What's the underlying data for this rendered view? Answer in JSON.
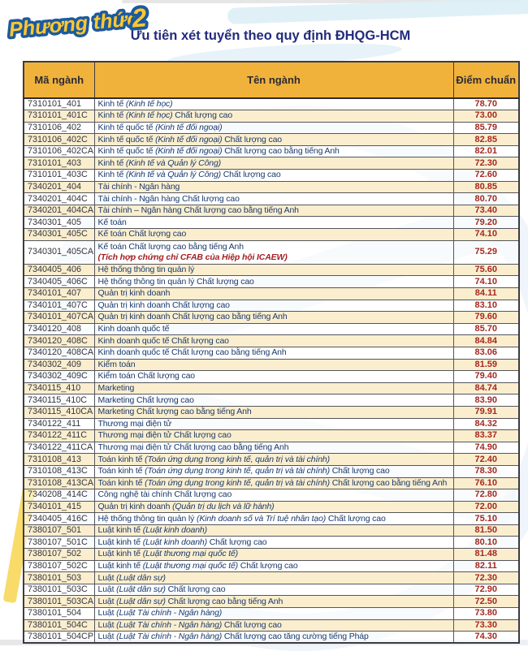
{
  "page": {
    "logo_main": "Phương thức",
    "logo_number": "2",
    "subtitle": "Ưu tiên xét tuyển theo quy định ĐHQG-HCM"
  },
  "colors": {
    "header_orange": "#f1b23c",
    "row_cream": "#faedcb",
    "name_navy": "#1c3a6b",
    "score_red": "#a5281f",
    "subtitle_navy": "#232b7d",
    "logo_gold": "#ffc832",
    "logo_outline_blue": "#1d5a9e"
  },
  "table": {
    "headers": [
      "Mã ngành",
      "Tên ngành",
      "Điểm chuẩn"
    ],
    "rows": [
      {
        "code": "7310101_401",
        "pre": "Kinh tế ",
        "it": "(Kinh tế học)",
        "post": "",
        "score": "78.70"
      },
      {
        "code": "7310101_401C",
        "pre": "Kinh tế ",
        "it": "(Kinh tế học)",
        "post": " Chất lượng cao",
        "score": "73.00"
      },
      {
        "code": "7310106_402",
        "pre": "Kinh tế quốc tế ",
        "it": "(Kinh tế đối ngoại)",
        "post": "",
        "score": "85.79"
      },
      {
        "code": "7310106_402C",
        "pre": "Kinh tế quốc tế ",
        "it": "(Kinh tế đối ngoại)",
        "post": " Chất lượng cao",
        "score": "82.85"
      },
      {
        "code": "7310106_402CA",
        "pre": "Kinh tế quốc tế ",
        "it": "(Kinh tế đối ngoại)",
        "post": " Chất lượng cao bằng tiếng Anh",
        "score": "82.01"
      },
      {
        "code": "7310101_403",
        "pre": "Kinh tế ",
        "it": "(Kinh tế và Quản lý Công)",
        "post": "",
        "score": "72.30"
      },
      {
        "code": "7310101_403C",
        "pre": "Kinh tế ",
        "it": "(Kinh tế và Quản lý Công)",
        "post": " Chất lượng cao",
        "score": "72.60"
      },
      {
        "code": "7340201_404",
        "pre": "Tài chính - Ngân hàng",
        "it": "",
        "post": "",
        "score": "80.85"
      },
      {
        "code": "7340201_404C",
        "pre": "Tài chính - Ngân hàng Chất lượng cao",
        "it": "",
        "post": "",
        "score": "80.70"
      },
      {
        "code": "7340201_404CA",
        "pre": "Tài chính – Ngân hàng Chất lượng cao bằng tiếng Anh",
        "it": "",
        "post": "",
        "score": "73.40"
      },
      {
        "code": "7340301_405",
        "pre": "Kế toán",
        "it": "",
        "post": "",
        "score": "79.20"
      },
      {
        "code": "7340301_405C",
        "pre": "Kế toán Chất lượng cao",
        "it": "",
        "post": "",
        "score": "74.10"
      },
      {
        "code": "7340301_405CA",
        "pre": "Kế toán Chất lượng cao bằng tiếng Anh",
        "it": "",
        "post": "",
        "note": "(Tích hợp chứng chỉ CFAB của Hiệp hội ICAEW)",
        "score": "75.29"
      },
      {
        "code": "7340405_406",
        "pre": "Hệ thống thông tin quản lý",
        "it": "",
        "post": "",
        "score": "75.60"
      },
      {
        "code": "7340405_406C",
        "pre": "Hệ thống thông tin quản lý Chất lượng cao",
        "it": "",
        "post": "",
        "score": "74.10"
      },
      {
        "code": "7340101_407",
        "pre": "Quản trị kinh doanh",
        "it": "",
        "post": "",
        "score": "84.11"
      },
      {
        "code": "7340101_407C",
        "pre": "Quản trị kinh doanh Chất lượng cao",
        "it": "",
        "post": "",
        "score": "83.10"
      },
      {
        "code": "7340101_407CA",
        "pre": "Quản trị kinh doanh Chất lượng cao bằng tiếng Anh",
        "it": "",
        "post": "",
        "score": "79.60"
      },
      {
        "code": "7340120_408",
        "pre": "Kinh doanh quốc tế",
        "it": "",
        "post": "",
        "score": "85.70"
      },
      {
        "code": "7340120_408C",
        "pre": "Kinh doanh quốc tế Chất lượng cao",
        "it": "",
        "post": "",
        "score": "84.84"
      },
      {
        "code": "7340120_408CA",
        "pre": "Kinh doanh quốc tế Chất lượng cao bằng tiếng Anh",
        "it": "",
        "post": "",
        "score": "83.06"
      },
      {
        "code": "7340302_409",
        "pre": "Kiểm toán",
        "it": "",
        "post": "",
        "score": "81.59"
      },
      {
        "code": "7340302_409C",
        "pre": "Kiểm toán Chất lượng cao",
        "it": "",
        "post": "",
        "score": "79.40"
      },
      {
        "code": "7340115_410",
        "pre": "Marketing",
        "it": "",
        "post": "",
        "score": "84.74"
      },
      {
        "code": "7340115_410C",
        "pre": "Marketing Chất lượng cao",
        "it": "",
        "post": "",
        "score": "83.90"
      },
      {
        "code": "7340115_410CA",
        "pre": "Marketing Chất lượng cao bằng tiếng Anh",
        "it": "",
        "post": "",
        "score": "79.91"
      },
      {
        "code": "7340122_411",
        "pre": "Thương mại điện tử",
        "it": "",
        "post": "",
        "score": "84.32"
      },
      {
        "code": "7340122_411C",
        "pre": "Thương mại điện tử Chất lượng cao",
        "it": "",
        "post": "",
        "score": "83.37"
      },
      {
        "code": "7340122_411CA",
        "pre": "Thương mại điện tử Chất lượng cao bằng tiếng Anh",
        "it": "",
        "post": "",
        "score": "74.90"
      },
      {
        "code": "7310108_413",
        "pre": "Toán kinh tế ",
        "it": "(Toán ứng dụng trong kinh tế, quản trị và tài chính)",
        "post": "",
        "score": "72.40"
      },
      {
        "code": "7310108_413C",
        "pre": "Toán kinh tế ",
        "it": "(Toán ứng dụng trong kinh tế, quản trị và tài chính)",
        "post": " Chất lượng cao",
        "score": "78.30"
      },
      {
        "code": "7310108_413CA",
        "pre": "Toán kinh tế ",
        "it": "(Toán ứng dụng trong kinh tế, quản trị và tài chính)",
        "post": " Chất lượng cao bằng tiếng Anh",
        "score": "76.10"
      },
      {
        "code": "7340208_414C",
        "pre": "Công nghệ tài chính Chất lượng cao",
        "it": "",
        "post": "",
        "score": "72.80"
      },
      {
        "code": "7340101_415",
        "pre": "Quản trị kinh doanh ",
        "it": "(Quản trị du lịch và lữ hành)",
        "post": "",
        "score": "72.00"
      },
      {
        "code": "7340405_416C",
        "pre": "Hệ thống thông tin quản lý ",
        "it": "(Kinh doanh số và Trí tuệ nhân tạo)",
        "post": " Chất lượng cao",
        "score": "75.10"
      },
      {
        "code": "7380107_501",
        "pre": "Luật kinh tế ",
        "it": "(Luật kinh doanh)",
        "post": "",
        "score": "81.50"
      },
      {
        "code": "7380107_501C",
        "pre": "Luật kinh tế ",
        "it": "(Luật kinh doanh)",
        "post": " Chất lượng cao",
        "score": "80.10"
      },
      {
        "code": "7380107_502",
        "pre": "Luật kinh tế ",
        "it": "(Luật thương mại quốc tế)",
        "post": "",
        "score": "81.48"
      },
      {
        "code": "7380107_502C",
        "pre": "Luật kinh tế ",
        "it": "(Luật thương mại quốc tế)",
        "post": " Chất lượng cao",
        "score": "82.11"
      },
      {
        "code": "7380101_503",
        "pre": "Luật ",
        "it": "(Luật dân sự)",
        "post": "",
        "score": "72.30"
      },
      {
        "code": "7380101_503C",
        "pre": "Luật ",
        "it": "(Luật dân sự)",
        "post": " Chất lượng cao",
        "score": "72.90"
      },
      {
        "code": "7380101_503CA",
        "pre": "Luật ",
        "it": "(Luật dân sự)",
        "post": " Chất lượng cao bằng tiếng Anh",
        "score": "72.50"
      },
      {
        "code": "7380101_504",
        "pre": "Luật ",
        "it": "(Luật Tài chính - Ngân hàng)",
        "post": "",
        "score": "73.80"
      },
      {
        "code": "7380101_504C",
        "pre": "Luật ",
        "it": "(Luật Tài chính - Ngân hàng)",
        "post": " Chất lượng cao",
        "score": "73.30"
      },
      {
        "code": "7380101_504CP",
        "pre": "Luật ",
        "it": "(Luật Tài chính - Ngân hàng)",
        "post": " Chất lượng cao tăng cường tiếng Pháp",
        "score": "74.30"
      }
    ]
  }
}
